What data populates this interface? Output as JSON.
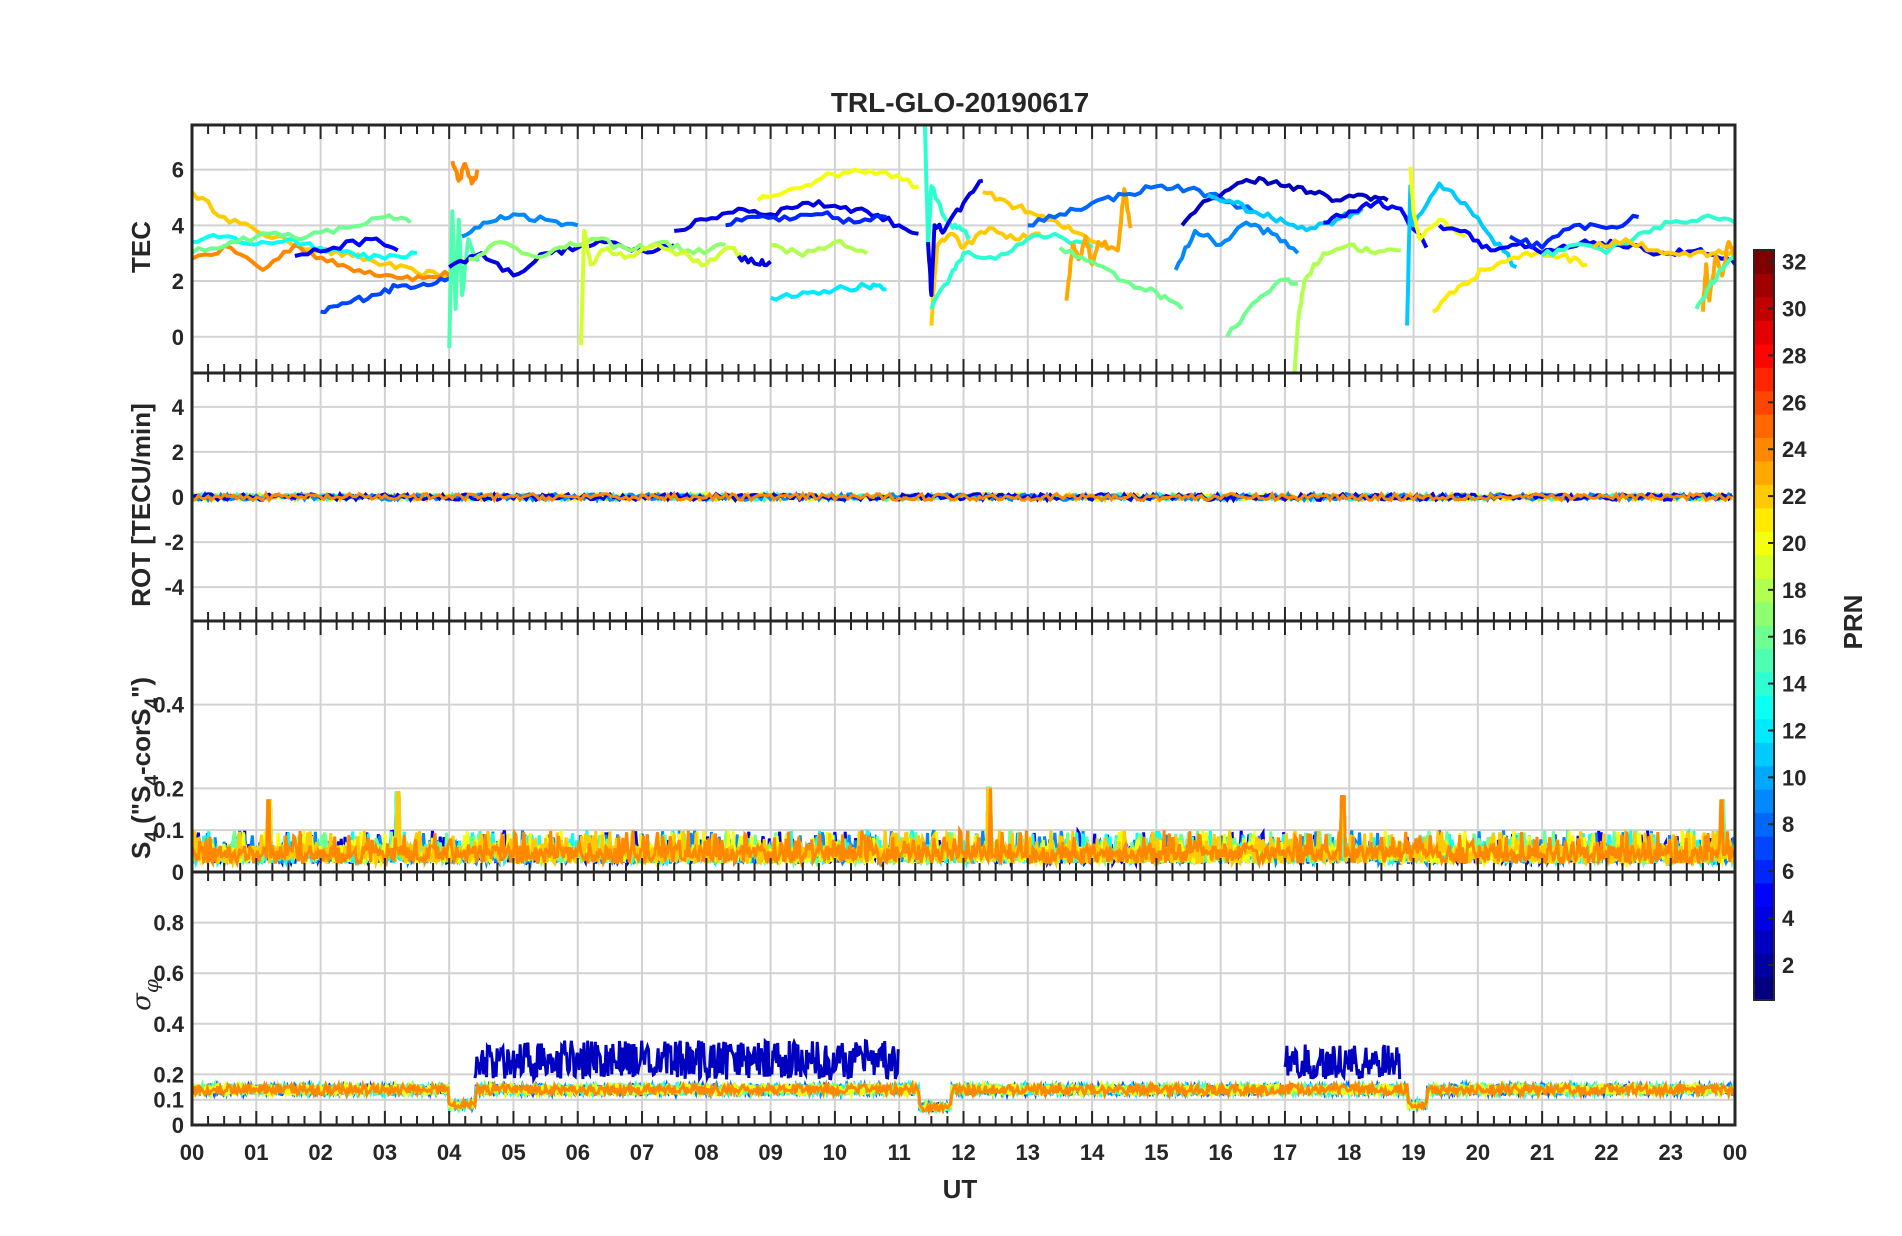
{
  "chart_data": {
    "type": "line",
    "title": "TRL-GLO-20190617",
    "xlabel": "UT",
    "x_ticks": [
      "00",
      "01",
      "02",
      "03",
      "04",
      "05",
      "06",
      "07",
      "08",
      "09",
      "10",
      "11",
      "12",
      "13",
      "14",
      "15",
      "16",
      "17",
      "18",
      "19",
      "20",
      "21",
      "22",
      "23",
      "00"
    ],
    "xlim_hours": [
      0,
      24
    ],
    "colorbar": {
      "label": "PRN",
      "range": [
        1,
        32
      ],
      "ticks": [
        "2",
        "4",
        "6",
        "8",
        "10",
        "12",
        "14",
        "16",
        "18",
        "20",
        "22",
        "24",
        "26",
        "28",
        "30",
        "32"
      ],
      "colormap": "jet"
    },
    "panels": [
      {
        "name": "tec",
        "ylabel": "TEC",
        "ylim": [
          -1.3,
          7.6
        ],
        "yticks": [
          {
            "v": 0,
            "t": "0"
          },
          {
            "v": 2,
            "t": "2"
          },
          {
            "v": 4,
            "t": "4"
          },
          {
            "v": 6,
            "t": "6"
          }
        ],
        "series": [
          {
            "prn": 22,
            "x": [
              0.0,
              0.5,
              1.0,
              1.5,
              2.0,
              2.5,
              3.0,
              3.5,
              4.0
            ],
            "y": [
              5.2,
              4.3,
              3.8,
              3.4,
              3.1,
              2.9,
              2.6,
              2.3,
              2.2
            ]
          },
          {
            "prn": 24,
            "x": [
              0.0,
              0.6,
              1.1,
              1.6,
              2.1,
              2.6,
              3.1,
              3.6,
              4.1
            ],
            "y": [
              2.8,
              3.2,
              2.4,
              3.3,
              2.7,
              2.4,
              2.2,
              2.1,
              2.3
            ]
          },
          {
            "prn": 13,
            "x": [
              0.0,
              0.5,
              1.0,
              1.5,
              2.0,
              2.5,
              3.0,
              3.5
            ],
            "y": [
              3.4,
              3.6,
              3.3,
              3.5,
              3.2,
              3.0,
              2.8,
              3.0
            ]
          },
          {
            "prn": 16,
            "x": [
              0.0,
              0.6,
              1.2,
              1.8,
              2.4,
              3.0,
              3.4
            ],
            "y": [
              3.0,
              3.4,
              3.7,
              3.6,
              3.9,
              4.3,
              4.1
            ]
          },
          {
            "prn": 7,
            "x": [
              2.0,
              2.4,
              2.8,
              3.2,
              3.6,
              4.0
            ],
            "y": [
              0.9,
              1.2,
              1.5,
              1.8,
              1.9,
              2.1
            ]
          },
          {
            "prn": 5,
            "x": [
              1.6,
              2.2,
              2.8,
              3.2
            ],
            "y": [
              2.9,
              3.2,
              3.5,
              3.1
            ]
          },
          {
            "prn": 24,
            "x": [
              4.05,
              4.15,
              4.25,
              4.35,
              4.45
            ],
            "y": [
              6.3,
              5.6,
              6.2,
              5.5,
              5.9
            ]
          },
          {
            "prn": 15,
            "x": [
              4.0,
              4.05,
              4.1,
              4.15,
              4.2,
              4.3,
              4.45
            ],
            "y": [
              -0.4,
              4.5,
              1.0,
              4.2,
              1.5,
              3.5,
              2.7
            ]
          },
          {
            "prn": 4,
            "x": [
              4.0,
              4.5,
              5.0,
              5.5,
              6.0,
              6.5,
              7.0,
              7.5
            ],
            "y": [
              2.5,
              3.0,
              2.2,
              3.0,
              3.2,
              3.4,
              3.1,
              3.3
            ]
          },
          {
            "prn": 9,
            "x": [
              4.2,
              4.6,
              5.0,
              5.5,
              6.0
            ],
            "y": [
              3.6,
              4.1,
              4.4,
              4.2,
              4.0
            ]
          },
          {
            "prn": 17,
            "x": [
              4.3,
              4.8,
              5.3,
              5.8,
              6.3,
              6.8,
              7.3,
              7.8,
              8.3
            ],
            "y": [
              2.8,
              3.4,
              2.9,
              3.2,
              3.5,
              3.1,
              3.4,
              3.0,
              3.3
            ]
          },
          {
            "prn": 19,
            "x": [
              6.05,
              6.1,
              6.2,
              6.4,
              6.8,
              7.2,
              7.6,
              8.0,
              8.4,
              8.6
            ],
            "y": [
              -0.3,
              3.8,
              2.6,
              3.1,
              2.9,
              3.3,
              3.0,
              2.6,
              3.2,
              2.8
            ]
          },
          {
            "prn": 4,
            "x": [
              7.5,
              8.0,
              8.5,
              9.0,
              9.5,
              10.0,
              10.5,
              11.0,
              11.3
            ],
            "y": [
              3.8,
              4.2,
              4.6,
              4.4,
              4.8,
              4.7,
              4.5,
              4.0,
              3.7
            ]
          },
          {
            "prn": 6,
            "x": [
              8.3,
              8.8,
              9.3,
              9.8,
              10.3,
              10.8
            ],
            "y": [
              4.0,
              4.3,
              4.2,
              4.4,
              4.1,
              4.3
            ]
          },
          {
            "prn": 20,
            "x": [
              8.8,
              9.3,
              9.8,
              10.3,
              10.8,
              11.3
            ],
            "y": [
              4.9,
              5.3,
              5.7,
              6.0,
              5.9,
              5.4
            ]
          },
          {
            "prn": 12,
            "x": [
              9.0,
              9.5,
              10.0,
              10.5,
              10.8
            ],
            "y": [
              1.4,
              1.6,
              1.7,
              1.8,
              1.7
            ]
          },
          {
            "prn": 18,
            "x": [
              9.0,
              9.5,
              10.0,
              10.5
            ],
            "y": [
              3.3,
              2.9,
              3.4,
              3.0
            ]
          },
          {
            "prn": 4,
            "x": [
              8.5,
              8.8,
              9.0
            ],
            "y": [
              2.9,
              2.6,
              2.7
            ]
          },
          {
            "prn": 14,
            "x": [
              11.4,
              11.45,
              11.5,
              11.7,
              11.9,
              12.1
            ],
            "y": [
              7.6,
              3.2,
              5.4,
              4.3,
              3.9,
              3.6
            ]
          },
          {
            "prn": 22,
            "x": [
              11.5,
              11.55,
              11.6,
              11.8,
              12.0,
              12.4,
              12.8,
              13.2
            ],
            "y": [
              0.4,
              2.2,
              3.3,
              3.7,
              3.2,
              3.9,
              3.5,
              3.7
            ]
          },
          {
            "prn": 4,
            "x": [
              11.45,
              11.5,
              11.55,
              11.7,
              12.0,
              12.3
            ],
            "y": [
              3.4,
              1.5,
              4.0,
              3.8,
              4.8,
              5.6
            ]
          },
          {
            "prn": 14,
            "x": [
              11.5,
              11.8,
              12.0,
              12.5,
              13.0,
              13.5,
              14.0
            ],
            "y": [
              1.0,
              2.2,
              3.0,
              2.8,
              3.5,
              3.6,
              3.2
            ]
          },
          {
            "prn": 22,
            "x": [
              12.3,
              12.7,
              13.1,
              13.5,
              13.9,
              14.3
            ],
            "y": [
              5.2,
              4.8,
              4.4,
              4.0,
              3.6,
              3.2
            ]
          },
          {
            "prn": 23,
            "x": [
              13.6,
              13.7,
              13.8,
              13.9,
              14.0,
              14.1,
              14.4,
              14.5,
              14.6
            ],
            "y": [
              1.3,
              3.3,
              2.8,
              3.6,
              2.6,
              3.4,
              3.1,
              5.3,
              3.9
            ]
          },
          {
            "prn": 16,
            "x": [
              13.5,
              14.0,
              14.5,
              15.0,
              15.4
            ],
            "y": [
              3.2,
              2.7,
              2.0,
              1.6,
              1.0
            ]
          },
          {
            "prn": 8,
            "x": [
              13.0,
              13.5,
              14.0,
              14.5,
              15.0,
              15.5,
              16.0,
              16.5
            ],
            "y": [
              4.0,
              4.4,
              4.8,
              5.1,
              5.4,
              5.3,
              5.0,
              4.5
            ]
          },
          {
            "prn": 3,
            "x": [
              15.4,
              15.8,
              16.2,
              16.6,
              17.0,
              17.4,
              17.8,
              18.2,
              18.6
            ],
            "y": [
              4.0,
              4.9,
              5.4,
              5.7,
              5.4,
              5.2,
              4.9,
              5.1,
              4.9
            ]
          },
          {
            "prn": 9,
            "x": [
              15.3,
              15.6,
              16.0,
              16.4,
              16.8,
              17.2
            ],
            "y": [
              2.4,
              3.8,
              3.3,
              4.1,
              3.7,
              3.0
            ]
          },
          {
            "prn": 11,
            "x": [
              15.8,
              16.2,
              16.6,
              17.0,
              17.4,
              17.8,
              18.2
            ],
            "y": [
              5.1,
              4.8,
              4.4,
              4.1,
              3.9,
              4.2,
              4.6
            ]
          },
          {
            "prn": 16,
            "x": [
              16.1,
              16.5,
              16.9,
              17.2
            ],
            "y": [
              0.0,
              1.2,
              2.0,
              1.9
            ]
          },
          {
            "prn": 18,
            "x": [
              17.15,
              17.2,
              17.3,
              17.6,
              18.0,
              18.4,
              18.8
            ],
            "y": [
              -1.3,
              0.5,
              2.0,
              3.0,
              3.3,
              3.0,
              3.1
            ]
          },
          {
            "prn": 5,
            "x": [
              17.6,
              18.0,
              18.4,
              18.8,
              19.2
            ],
            "y": [
              4.1,
              4.5,
              4.8,
              4.6,
              3.2
            ]
          },
          {
            "prn": 11,
            "x": [
              18.9,
              18.95,
              19.0,
              19.4,
              19.8,
              20.2,
              20.6
            ],
            "y": [
              0.4,
              5.4,
              4.0,
              5.5,
              4.8,
              3.6,
              2.5
            ]
          },
          {
            "prn": 20,
            "x": [
              18.95,
              19.0,
              19.1,
              19.4,
              19.8
            ],
            "y": [
              6.1,
              4.5,
              3.5,
              4.2,
              3.6
            ]
          },
          {
            "prn": 21,
            "x": [
              19.3,
              19.7,
              20.1,
              20.5,
              20.9,
              21.3,
              21.7
            ],
            "y": [
              0.9,
              1.8,
              2.4,
              2.8,
              3.0,
              2.9,
              2.6
            ]
          },
          {
            "prn": 5,
            "x": [
              19.4,
              19.8,
              20.2,
              20.6,
              21.0,
              21.4,
              21.8,
              22.2,
              22.6,
              23.0,
              23.4,
              23.8,
              24.0
            ],
            "y": [
              4.0,
              3.8,
              3.1,
              3.3,
              3.0,
              3.2,
              3.4,
              3.3,
              3.1,
              3.0,
              3.1,
              2.8,
              2.6
            ]
          },
          {
            "prn": 6,
            "x": [
              20.5,
              21.0,
              21.5,
              22.0,
              22.5
            ],
            "y": [
              3.6,
              3.2,
              4.0,
              3.9,
              4.3
            ]
          },
          {
            "prn": 14,
            "x": [
              21.0,
              21.5,
              22.0,
              22.5,
              23.0,
              23.5,
              24.0
            ],
            "y": [
              2.9,
              3.3,
              3.0,
              3.7,
              4.1,
              4.3,
              4.1
            ]
          },
          {
            "prn": 22,
            "x": [
              21.8,
              22.3,
              22.8,
              23.3,
              23.7,
              24.0
            ],
            "y": [
              3.2,
              3.5,
              3.1,
              2.9,
              3.0,
              3.1
            ]
          },
          {
            "prn": 23,
            "x": [
              23.5,
              23.55,
              23.6,
              23.7,
              23.8,
              23.9,
              24.0
            ],
            "y": [
              0.9,
              2.6,
              1.3,
              2.9,
              2.2,
              3.4,
              2.8
            ]
          },
          {
            "prn": 15,
            "x": [
              23.4,
              23.6,
              23.8,
              24.0
            ],
            "y": [
              1.0,
              1.8,
              2.4,
              2.9
            ]
          }
        ]
      },
      {
        "name": "rot",
        "ylabel": "ROT [TECU/min]",
        "ylim": [
          -5.5,
          5.5
        ],
        "yticks": [
          {
            "v": -4,
            "t": "-4"
          },
          {
            "v": -2,
            "t": "-2"
          },
          {
            "v": 0,
            "t": "0"
          },
          {
            "v": 2,
            "t": "2"
          },
          {
            "v": 4,
            "t": "4"
          }
        ],
        "band": {
          "center": 0,
          "amplitude": 0.15,
          "note": "all PRNs near zero"
        }
      },
      {
        "name": "s4",
        "ylabel": "S4 (\"S4-corS4\")",
        "ylim": [
          0,
          0.6
        ],
        "yticks": [
          {
            "v": 0,
            "t": "0"
          },
          {
            "v": 0.1,
            "t": "0.1"
          },
          {
            "v": 0.2,
            "t": "0.2"
          },
          {
            "v": 0.4,
            "t": "0.4"
          }
        ],
        "band": {
          "base": 0.04,
          "typical_max": 0.12,
          "peaks": [
            [
              1.2,
              0.17
            ],
            [
              3.2,
              0.19
            ],
            [
              12.4,
              0.2
            ],
            [
              17.9,
              0.18
            ],
            [
              23.8,
              0.17
            ]
          ]
        }
      },
      {
        "name": "sigma_phi",
        "ylabel": "σ φ",
        "ylim": [
          0,
          1.0
        ],
        "yticks": [
          {
            "v": 0,
            "t": "0"
          },
          {
            "v": 0.1,
            "t": "0.1"
          },
          {
            "v": 0.2,
            "t": "0.2"
          },
          {
            "v": 0.4,
            "t": "0.4"
          },
          {
            "v": 0.6,
            "t": "0.6"
          },
          {
            "v": 0.8,
            "t": "0.8"
          }
        ],
        "band": {
          "base": 0.14,
          "elevated": [
            [
              4.4,
              11.0,
              0.25
            ],
            [
              17.0,
              18.8,
              0.24
            ]
          ],
          "gaps": [
            [
              4.0,
              4.4,
              0.08
            ],
            [
              11.3,
              11.8,
              0.07
            ],
            [
              18.9,
              19.2,
              0.08
            ]
          ]
        }
      }
    ]
  }
}
